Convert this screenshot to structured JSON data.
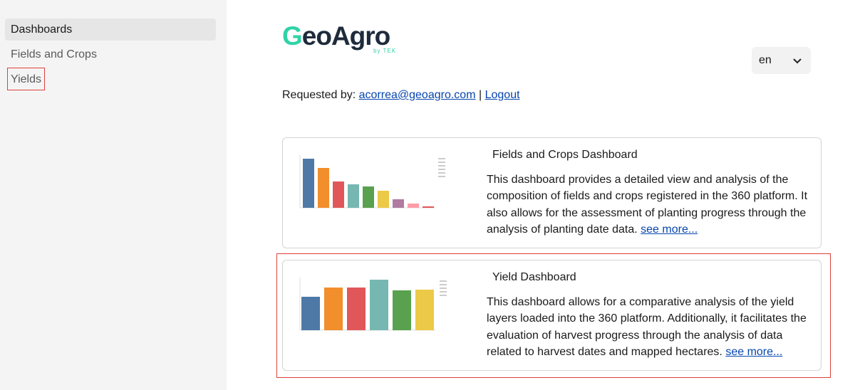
{
  "sidebar": {
    "items": [
      "Dashboards",
      "Fields and Crops",
      "Yields"
    ]
  },
  "header": {
    "logo": "GeoAgro",
    "logo_sub": "by TEK",
    "language": "en",
    "requested_by": "Requested by:",
    "email": "acorrea@geoagro.com",
    "separator": "|",
    "logout": "Logout"
  },
  "cards": [
    {
      "title": "Fields and Crops Dashboard",
      "description": "This dashboard provides a detailed view and analysis of the composition of fields and crops registered in the 360 platform. It also allows for the assessment of planting progress through the analysis of planting date data.",
      "link": "see more..."
    },
    {
      "title": "Yield Dashboard",
      "description": "This dashboard allows for a comparative analysis of the yield layers loaded into the 360 platform. Additionally, it facilitates the evaluation of harvest progress through the analysis of data related to harvest dates and mapped hectares.",
      "link": "see more..."
    }
  ]
}
